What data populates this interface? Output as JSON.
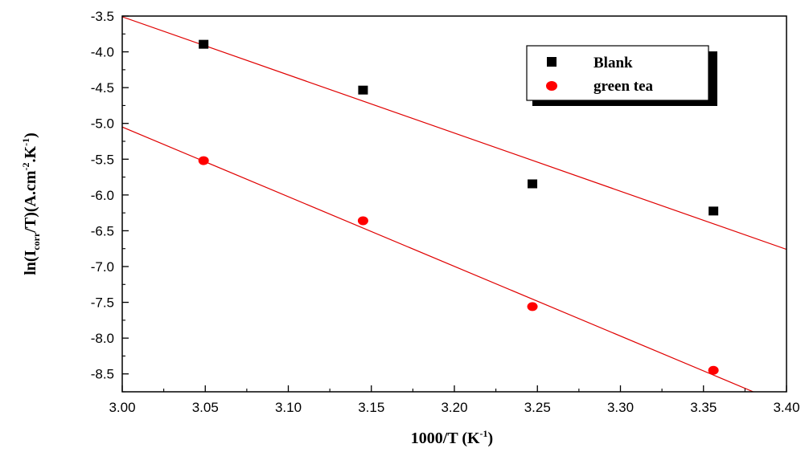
{
  "chart_data": {
    "type": "scatter",
    "xlim": [
      3.0,
      3.4
    ],
    "ylim": [
      -8.75,
      -3.5
    ],
    "x_ticks": [
      "3.00",
      "3.05",
      "3.10",
      "3.15",
      "3.20",
      "3.25",
      "3.30",
      "3.35",
      "3.40"
    ],
    "y_ticks": [
      "-3.5",
      "-4.0",
      "-4.5",
      "-5.0",
      "-5.5",
      "-6.0",
      "-6.5",
      "-7.0",
      "-7.5",
      "-8.0",
      "-8.5"
    ],
    "xlabel": {
      "main": "1000/T (K",
      "sup": "-1",
      "close": ")"
    },
    "ylabel": {
      "p1": "ln(I",
      "sub": "corr",
      "p2": "/T)(A.cm",
      "sup1": "-2",
      "p3": ".K",
      "sup2": "-1",
      "p4": ")"
    },
    "legend_position": "top-right",
    "grid": false,
    "series": [
      {
        "name": "Blank",
        "marker": "square",
        "color": "#000000",
        "x": [
          3.049,
          3.145,
          3.247,
          3.356
        ],
        "y": [
          -3.9,
          -4.54,
          -5.85,
          -6.23
        ],
        "fit": {
          "x": [
            3.0,
            3.4
          ],
          "y": [
            -3.51,
            -6.76
          ],
          "color": "#e00000"
        }
      },
      {
        "name": "green tea",
        "marker": "circle",
        "color": "#ff0000",
        "x": [
          3.049,
          3.145,
          3.247,
          3.356
        ],
        "y": [
          -5.52,
          -6.36,
          -7.56,
          -8.45
        ],
        "fit": {
          "x": [
            3.0,
            3.38
          ],
          "y": [
            -5.05,
            -8.75
          ],
          "color": "#e00000"
        }
      }
    ]
  }
}
